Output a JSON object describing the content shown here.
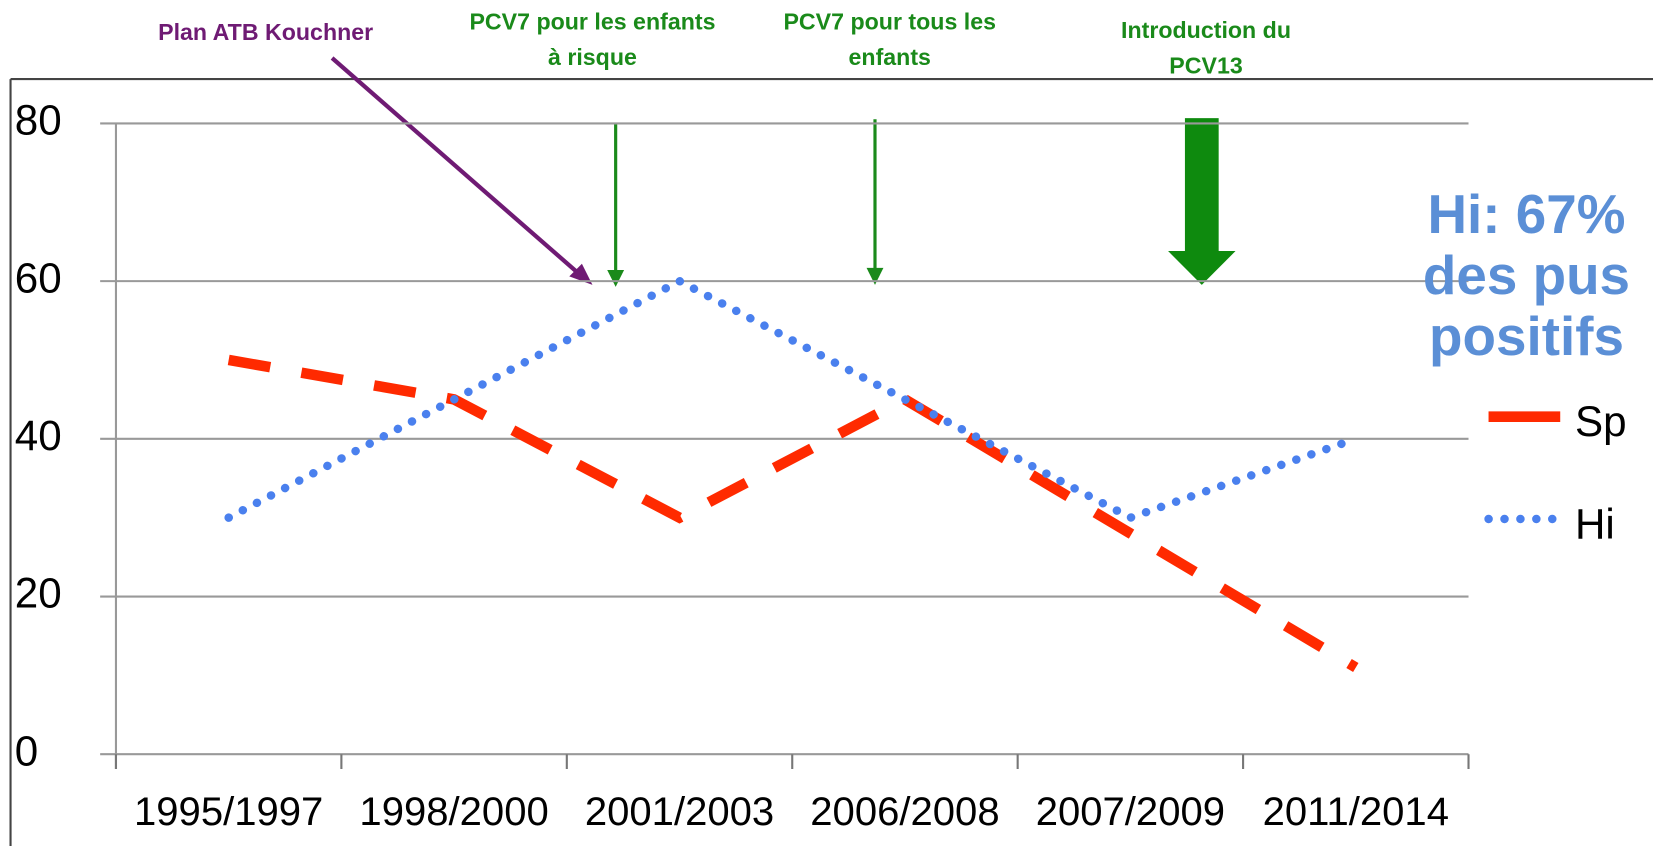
{
  "chart_data": {
    "type": "line",
    "categories": [
      "1995/1997",
      "1998/2000",
      "2001/2003",
      "2006/2008",
      "2007/2009",
      "2011/2014"
    ],
    "series": [
      {
        "name": "Sp",
        "color": "#ff2a00",
        "values": [
          50,
          45,
          30,
          45,
          28,
          11
        ]
      },
      {
        "name": "Hi",
        "color": "#4a80ee",
        "values": [
          30,
          45,
          60,
          45,
          30,
          40
        ]
      }
    ],
    "ylim": [
      0,
      80
    ],
    "yticks": [
      0,
      20,
      40,
      60,
      80
    ],
    "grid": true,
    "annotations": [
      {
        "lines": [
          "Plan ATB Kouchner"
        ],
        "color": "#6f1b74"
      },
      {
        "lines": [
          "PCV7 pour les enfants",
          "à risque"
        ],
        "color": "#1a8a1a"
      },
      {
        "lines": [
          "PCV7 pour tous les",
          "enfants"
        ],
        "color": "#1a8a1a"
      },
      {
        "lines": [
          "Introduction du",
          "PCV13"
        ],
        "color": "#1a8a1a"
      },
      {
        "lines": [
          "Hi: 67%",
          "des pus",
          "positifs"
        ],
        "color": "#5b8fd6"
      }
    ]
  }
}
